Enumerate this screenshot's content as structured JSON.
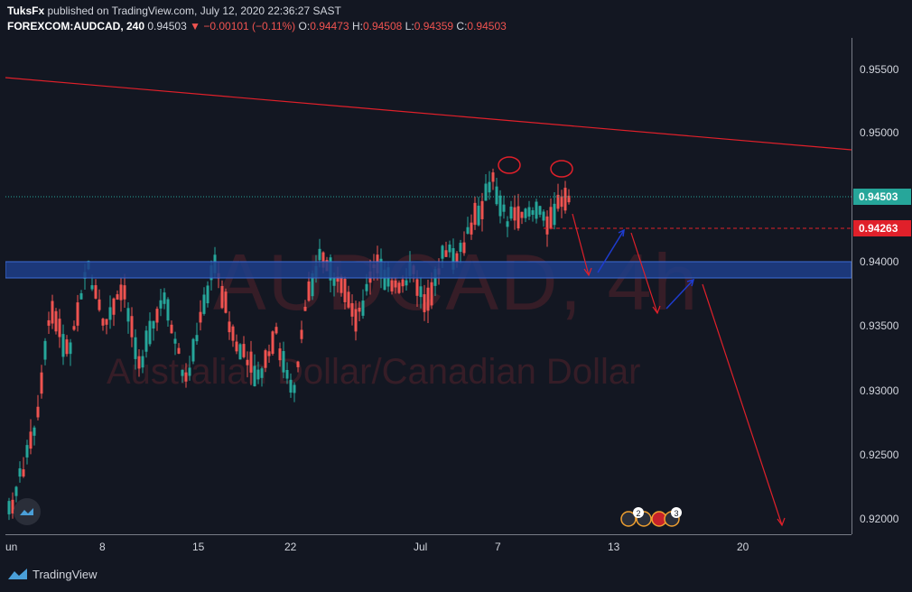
{
  "header": {
    "author": "TuksFx",
    "published_text": "published on TradingView.com, July 12, 2020 22:36:27 SAST",
    "symbol": "FOREXCOM:AUDCAD, 240",
    "last": "0.94503",
    "change": "−0.00101 (−0.11%)",
    "o_label": "O:",
    "o_value": "0.94473",
    "h_label": "H:",
    "h_value": "0.94508",
    "l_label": "L:",
    "l_value": "0.94359",
    "c_label": "C:",
    "c_value": "0.94503"
  },
  "watermark": {
    "symbol": "AUDCAD, 4h",
    "description": "Australian Dollar/Canadian Dollar"
  },
  "price_axis": {
    "ticks": [
      "0.95500",
      "0.95000",
      "0.94000",
      "0.93500",
      "0.93000",
      "0.92500",
      "0.92000"
    ],
    "current_price_tag": "0.94503",
    "marked_price_tag": "0.94263"
  },
  "time_axis": {
    "ticks": [
      "un",
      "8",
      "15",
      "22",
      "Jul",
      "7",
      "13",
      "20"
    ]
  },
  "events": {
    "badge_1": "2",
    "badge_2": "3"
  },
  "footer": {
    "brand": "TradingView"
  },
  "colors": {
    "background": "#131722",
    "bull": "#26a69a",
    "bear": "#ef5350",
    "zone": "#1e3e8a",
    "drawing_red": "#e0202a",
    "drawing_blue": "#1e3ccf"
  }
}
